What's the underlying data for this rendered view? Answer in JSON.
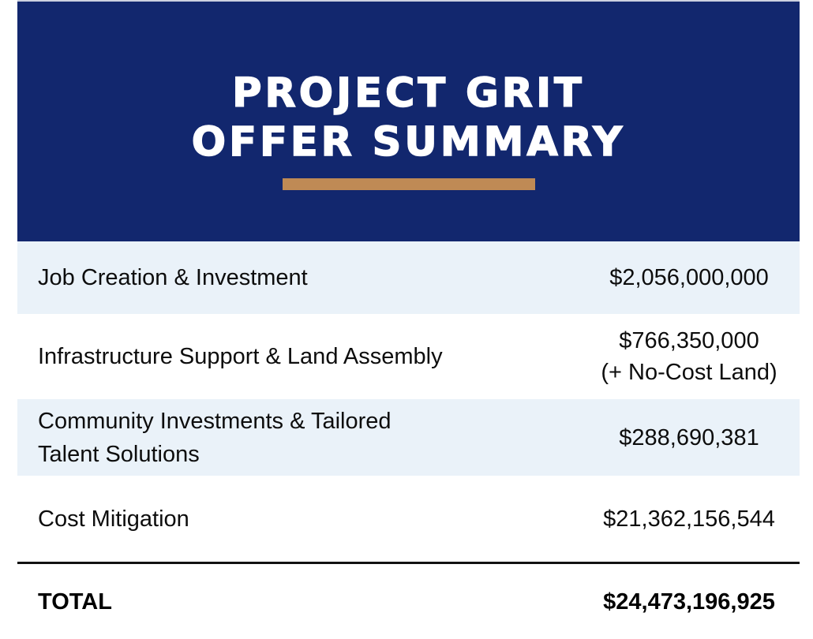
{
  "header": {
    "title_line1": "PROJECT GRIT",
    "title_line2": "OFFER SUMMARY",
    "bg_color": "#12276e",
    "accent_bar_color": "#bf8a55",
    "text_color": "#ffffff"
  },
  "table": {
    "shaded_row_color": "#eaf2f9",
    "rows": [
      {
        "label": "Job Creation & Investment",
        "value": "$2,056,000,000",
        "shaded": true
      },
      {
        "label": "Infrastructure Support & Land Assembly",
        "value": "$766,350,000\n(+ No-Cost Land)",
        "shaded": false
      },
      {
        "label": "Community Investments & Tailored\nTalent Solutions",
        "value": "$288,690,381",
        "shaded": true
      },
      {
        "label": "Cost Mitigation",
        "value": "$21,362,156,544",
        "shaded": false
      }
    ],
    "total": {
      "label": "TOTAL",
      "value": "$24,473,196,925"
    }
  }
}
